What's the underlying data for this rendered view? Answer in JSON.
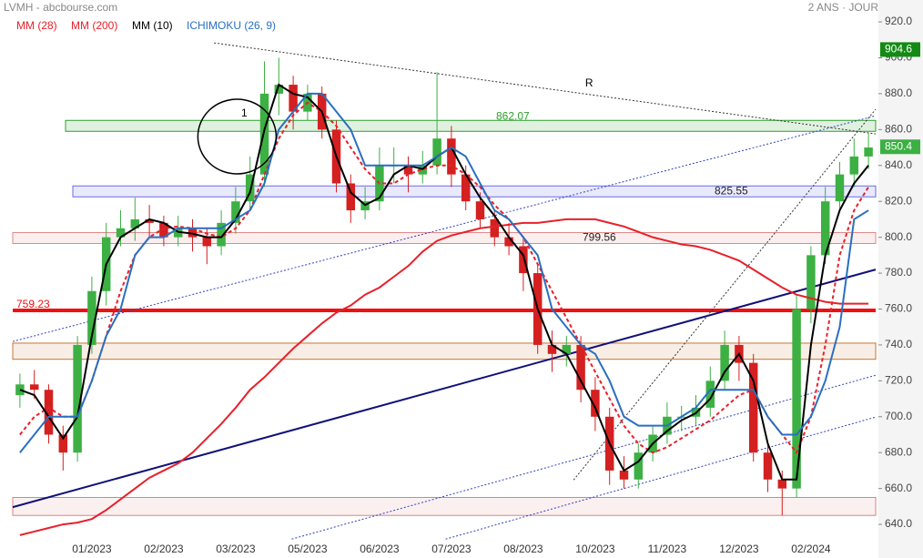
{
  "chart_data": {
    "type": "candlestick",
    "title": "LVMH - abcbourse.com",
    "subtitle": "2 ANS · JOUR",
    "categories": [
      null,
      null,
      null,
      null,
      null,
      "01/2023",
      null,
      null,
      null,
      null,
      "02/2023",
      null,
      null,
      null,
      null,
      "03/2023",
      null,
      null,
      null,
      null,
      "05/2023",
      null,
      null,
      null,
      null,
      "06/2023",
      null,
      null,
      null,
      null,
      "07/2023",
      null,
      null,
      null,
      null,
      "08/2023",
      null,
      null,
      null,
      null,
      "10/2023",
      null,
      null,
      null,
      null,
      "11/2023",
      null,
      null,
      null,
      null,
      "12/2023",
      null,
      null,
      null,
      null,
      "02/2024",
      null,
      null,
      null,
      null
    ],
    "open": [
      712,
      718,
      715,
      690,
      680,
      740,
      770,
      800,
      805,
      810,
      808,
      800,
      805,
      800,
      795,
      808,
      820,
      835,
      880,
      885,
      870,
      880,
      860,
      830,
      815,
      820,
      840,
      840,
      835,
      840,
      855,
      835,
      820,
      810,
      800,
      795,
      780,
      740,
      735,
      740,
      715,
      700,
      670,
      665,
      680,
      690,
      700,
      700,
      705,
      720,
      740,
      730,
      680,
      665,
      660,
      760,
      790,
      820,
      835,
      845
    ],
    "high": [
      724,
      726,
      718,
      695,
      745,
      778,
      808,
      815,
      822,
      818,
      812,
      812,
      810,
      805,
      815,
      828,
      845,
      898,
      900,
      890,
      885,
      884,
      865,
      835,
      828,
      850,
      850,
      845,
      848,
      892,
      862,
      840,
      825,
      815,
      808,
      800,
      785,
      748,
      745,
      745,
      722,
      705,
      678,
      685,
      695,
      708,
      706,
      712,
      728,
      748,
      745,
      735,
      685,
      670,
      768,
      795,
      828,
      842,
      855,
      858
    ],
    "low": [
      705,
      710,
      685,
      670,
      675,
      735,
      762,
      795,
      798,
      800,
      795,
      795,
      792,
      785,
      790,
      802,
      815,
      828,
      868,
      860,
      865,
      855,
      825,
      808,
      810,
      815,
      830,
      825,
      830,
      835,
      828,
      815,
      805,
      795,
      790,
      770,
      735,
      725,
      728,
      708,
      692,
      662,
      660,
      660,
      675,
      685,
      692,
      695,
      700,
      715,
      720,
      675,
      658,
      645,
      655,
      752,
      785,
      815,
      828,
      838
    ],
    "close": [
      718,
      715,
      690,
      680,
      740,
      770,
      800,
      805,
      810,
      808,
      800,
      805,
      800,
      795,
      808,
      820,
      835,
      880,
      885,
      870,
      880,
      860,
      830,
      815,
      820,
      840,
      840,
      835,
      840,
      855,
      835,
      820,
      810,
      800,
      795,
      780,
      740,
      735,
      740,
      715,
      700,
      670,
      665,
      680,
      690,
      700,
      700,
      705,
      720,
      740,
      730,
      680,
      665,
      660,
      760,
      790,
      820,
      835,
      845,
      850
    ],
    "up_color": "#3cb043",
    "down_color": "#d42020",
    "series": [
      {
        "name": "MM (28)",
        "color": "#e8202a",
        "dash": true,
        "values": [
          690,
          700,
          705,
          700,
          700,
          720,
          745,
          770,
          790,
          800,
          805,
          806,
          805,
          802,
          800,
          805,
          815,
          835,
          855,
          868,
          875,
          870,
          862,
          850,
          838,
          830,
          830,
          835,
          838,
          840,
          840,
          835,
          828,
          818,
          810,
          800,
          785,
          770,
          755,
          740,
          725,
          710,
          695,
          685,
          680,
          683,
          688,
          693,
          698,
          705,
          712,
          715,
          700,
          690,
          680,
          700,
          740,
          790,
          815,
          828
        ]
      },
      {
        "name": "MM (200)",
        "color": "#e8202a",
        "dash": false,
        "values": [
          634,
          636,
          638,
          640,
          641,
          643,
          648,
          654,
          660,
          666,
          670,
          674,
          680,
          688,
          696,
          705,
          715,
          722,
          730,
          738,
          745,
          752,
          758,
          762,
          768,
          772,
          778,
          784,
          792,
          798,
          801,
          803,
          805,
          806,
          807,
          808,
          808,
          809,
          810,
          810,
          810,
          808,
          806,
          803,
          800,
          798,
          796,
          795,
          793,
          790,
          787,
          782,
          777,
          772,
          768,
          766,
          764,
          763,
          763,
          763
        ]
      },
      {
        "name": "MM (10)",
        "color": "#000000",
        "dash": false,
        "values": [
          715,
          712,
          700,
          688,
          700,
          745,
          785,
          800,
          805,
          810,
          808,
          803,
          802,
          800,
          800,
          810,
          825,
          860,
          885,
          880,
          878,
          870,
          845,
          825,
          818,
          822,
          835,
          840,
          838,
          845,
          850,
          835,
          822,
          812,
          800,
          790,
          760,
          740,
          735,
          720,
          705,
          685,
          670,
          675,
          685,
          692,
          698,
          702,
          710,
          725,
          735,
          720,
          685,
          665,
          665,
          740,
          790,
          815,
          830,
          840
        ]
      },
      {
        "name": "ICHIMOKU (26, 9)",
        "color": "#2a6fc0",
        "dash": false,
        "values": [
          680,
          690,
          700,
          700,
          700,
          720,
          745,
          760,
          790,
          800,
          800,
          805,
          805,
          805,
          805,
          810,
          815,
          830,
          860,
          870,
          880,
          880,
          870,
          860,
          840,
          840,
          840,
          840,
          840,
          845,
          850,
          845,
          830,
          815,
          810,
          800,
          790,
          760,
          750,
          740,
          735,
          720,
          700,
          695,
          695,
          695,
          700,
          705,
          715,
          715,
          715,
          715,
          700,
          690,
          690,
          700,
          720,
          750,
          810,
          815
        ]
      }
    ],
    "xlim": [
      -0.5,
      59.5
    ],
    "ylim": [
      630.4,
      932.2
    ],
    "yticks": [
      {
        "value": 920,
        "label": "920.0"
      },
      {
        "value": 900,
        "label": "900.0"
      },
      {
        "value": 880,
        "label": "880.0"
      },
      {
        "value": 860,
        "label": "860.0"
      },
      {
        "value": 840,
        "label": "840.0"
      },
      {
        "value": 820,
        "label": "820.0"
      },
      {
        "value": 800,
        "label": "800.0"
      },
      {
        "value": 780,
        "label": "780.0"
      },
      {
        "value": 760,
        "label": "760.0"
      },
      {
        "value": 740,
        "label": "740.0"
      },
      {
        "value": 720,
        "label": "720.0"
      },
      {
        "value": 700,
        "label": "700.0"
      },
      {
        "value": 680,
        "label": "680.0"
      },
      {
        "value": 660,
        "label": "660.0"
      },
      {
        "value": 640,
        "label": "640.0"
      }
    ],
    "levels": [
      {
        "value": 862.07,
        "color": "#2ca02c"
      },
      {
        "value": 825.55,
        "color": "#6a6ae8"
      },
      {
        "value": 799.56,
        "color": "#e08a8a"
      },
      {
        "value": 759.23,
        "color": "#f01010"
      }
    ],
    "zones": [
      {
        "from": 732,
        "to": 741,
        "color": "#c87533"
      },
      {
        "from": 645,
        "to": 655,
        "color": "#e08080"
      }
    ],
    "trendlines": [
      {
        "x": [
          -0.5,
          59.5
        ],
        "y": [
          649.6,
          782
        ],
        "color": "#10107a",
        "style": "solid"
      },
      {
        "x": [
          13.5,
          59.5
        ],
        "y": [
          908.3,
          857.6
        ],
        "color": "#333333",
        "style": "dotted",
        "label": "R"
      },
      {
        "x": [
          -0.5,
          59.5
        ],
        "y": [
          741.9,
          867.7
        ],
        "color": "#3040c0",
        "style": "dotted"
      },
      {
        "x": [
          18.9,
          59.5
        ],
        "y": [
          631.8,
          723.1
        ],
        "color": "#3040c0",
        "style": "dotted"
      },
      {
        "x": [
          29.6,
          59.5
        ],
        "y": [
          631.8,
          699.8
        ],
        "color": "#3040c0",
        "style": "dotted"
      },
      {
        "x": [
          38.5,
          59.5
        ],
        "y": [
          664.8,
          871.3
        ],
        "color": "#333333",
        "style": "dotted"
      }
    ],
    "annotations": [
      {
        "text": "1",
        "x": 15.6,
        "y": 868.8
      }
    ],
    "price_tags": [
      {
        "value": 904.6,
        "color": "#138a13"
      },
      {
        "value": 850.4,
        "color": "#3cb043"
      }
    ]
  }
}
